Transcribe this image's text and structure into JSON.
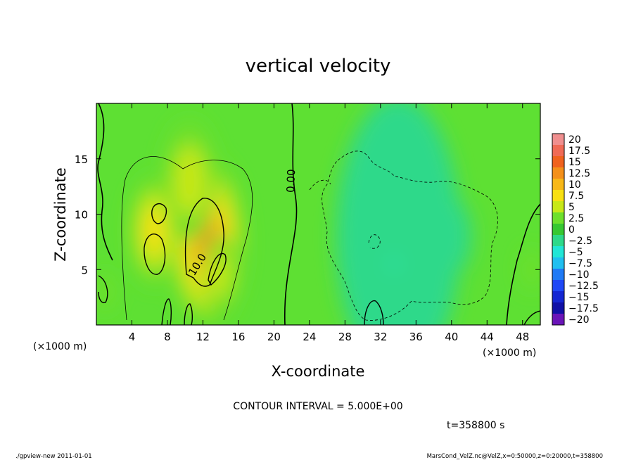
{
  "chart_data": {
    "type": "heatmap",
    "title": "vertical velocity",
    "xlabel": "X-coordinate",
    "ylabel": "Z-coordinate",
    "x_unit": "(×1000 m)",
    "y_unit": "(×1000 m)",
    "xlim": [
      0,
      50
    ],
    "ylim": [
      0,
      20
    ],
    "x_ticks": [
      4,
      8,
      12,
      16,
      20,
      24,
      28,
      32,
      36,
      40,
      44,
      48
    ],
    "y_ticks": [
      5,
      10,
      15
    ],
    "contour_labels": [
      "0.00",
      "10.0"
    ],
    "colorbar": {
      "labels": [
        "20",
        "17.5",
        "15",
        "12.5",
        "10",
        "7.5",
        "5",
        "2.5",
        "0",
        "-2.5",
        "-5",
        "-7.5",
        "-10",
        "-12.5",
        "-15",
        "-17.5",
        "-20"
      ],
      "colors": [
        "#f08f8f",
        "#f06a56",
        "#f0621e",
        "#f4901a",
        "#f8b818",
        "#f8e012",
        "#c8e818",
        "#6ee02c",
        "#37c832",
        "#2ed98a",
        "#22e6d6",
        "#20bff0",
        "#1f7af6",
        "#1f48f6",
        "#1426d2",
        "#1010a6",
        "#6a14b8"
      ]
    },
    "blobs": [
      {
        "x": 12.5,
        "z": 7.5,
        "w": 8.5,
        "v": 13.5
      },
      {
        "x": 6.5,
        "z": 8.5,
        "w": 5.5,
        "v": 8.5
      },
      {
        "x": 10.5,
        "z": 13,
        "w": 6,
        "v": 5
      },
      {
        "x": 14,
        "z": 4.5,
        "w": 4,
        "v": 5
      },
      {
        "x": 1,
        "z": 3,
        "w": 2,
        "v": 4
      },
      {
        "x": 49,
        "z": 5,
        "w": 2,
        "v": 3
      },
      {
        "x": 34,
        "z": 8,
        "w": 14,
        "v": -3
      },
      {
        "x": 38,
        "z": 9,
        "w": 6,
        "v": -2.5
      },
      {
        "x": 40.5,
        "z": 8,
        "w": 3.5,
        "v": -3
      },
      {
        "x": 30,
        "z": 8,
        "w": 3,
        "v": -2
      },
      {
        "x": 33.5,
        "z": 5.5,
        "w": 0.8,
        "v": -6
      }
    ],
    "contour_interval": "CONTOUR INTERVAL = 5.000E+00",
    "time": "t=358800 s"
  },
  "footer": {
    "left": "./gpview-new 2011-01-01",
    "right": "MarsCond_VelZ.nc@VelZ,x=0:50000,z=0:20000,t=358800"
  }
}
